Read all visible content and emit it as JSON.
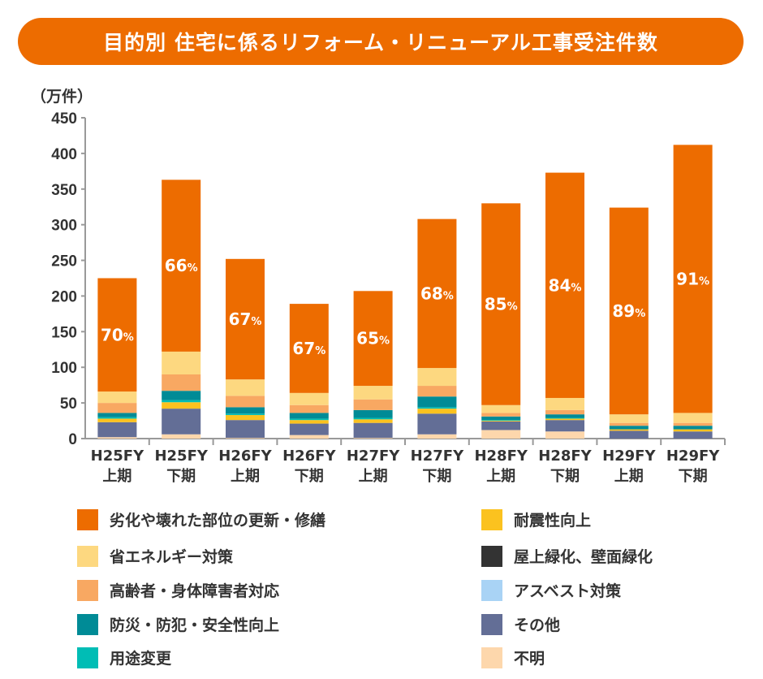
{
  "chart_data": {
    "type": "bar",
    "stacked": true,
    "title": "目的別 住宅に係るリフォーム・リニューアル工事受注件数",
    "ylabel": "（万件）",
    "ylim": [
      0,
      450
    ],
    "yticks": [
      "0",
      "50",
      "100",
      "150",
      "200",
      "250",
      "300",
      "350",
      "400",
      "450"
    ],
    "categories": [
      [
        "H25FY",
        "上期"
      ],
      [
        "H25FY",
        "下期"
      ],
      [
        "H26FY",
        "上期"
      ],
      [
        "H26FY",
        "下期"
      ],
      [
        "H27FY",
        "上期"
      ],
      [
        "H27FY",
        "下期"
      ],
      [
        "H28FY",
        "上期"
      ],
      [
        "H28FY",
        "下期"
      ],
      [
        "H29FY",
        "上期"
      ],
      [
        "H29FY",
        "下期"
      ]
    ],
    "series": [
      {
        "name": "不明",
        "color": "#FDD7AC",
        "values": [
          2,
          6,
          1,
          5,
          1,
          6,
          12,
          10,
          0,
          0
        ]
      },
      {
        "name": "その他",
        "color": "#636E96",
        "values": [
          21,
          36,
          25,
          16,
          21,
          29,
          12,
          16,
          11,
          10
        ]
      },
      {
        "name": "耐震性向上",
        "color": "#FBC21F",
        "values": [
          5,
          9,
          7,
          5,
          5,
          7,
          1,
          2,
          2,
          3
        ]
      },
      {
        "name": "用途変更",
        "color": "#00BDB5",
        "values": [
          2,
          3,
          2,
          2,
          2,
          2,
          1,
          1,
          0,
          0
        ]
      },
      {
        "name": "屋上緑化、壁面緑化",
        "color": "#333333",
        "values": [
          0,
          0,
          0,
          0,
          0,
          0,
          0,
          0,
          0,
          0
        ]
      },
      {
        "name": "アスベスト対策",
        "color": "#A9D3F5",
        "values": [
          0,
          0,
          0,
          0,
          0,
          0,
          0,
          0,
          0,
          0
        ]
      },
      {
        "name": "防災・防犯・安全性向上",
        "color": "#008B96",
        "values": [
          6,
          13,
          9,
          8,
          11,
          15,
          5,
          5,
          5,
          5
        ]
      },
      {
        "name": "高齢者・身体障害者対応",
        "color": "#F8A862",
        "values": [
          14,
          23,
          16,
          11,
          15,
          15,
          5,
          6,
          4,
          4
        ]
      },
      {
        "name": "省エネルギー対策",
        "color": "#FDD880",
        "values": [
          16,
          32,
          23,
          17,
          19,
          25,
          11,
          17,
          12,
          14
        ]
      },
      {
        "name": "劣化や壊れた部位の更新・修繕",
        "color": "#ED6C00",
        "values": [
          159,
          241,
          169,
          125,
          133,
          209,
          283,
          316,
          290,
          376
        ]
      }
    ],
    "data_labels": [
      "70%",
      "66%",
      "67%",
      "67%",
      "65%",
      "68%",
      "85%",
      "84%",
      "89%",
      "91%"
    ],
    "legend_left": [
      "劣化や壊れた部位の更新・修繕",
      "省エネルギー対策",
      "高齢者・身体障害者対応",
      "防災・防犯・安全性向上",
      "用途変更"
    ],
    "legend_right": [
      "耐震性向上",
      "屋上緑化、壁面緑化",
      "アスベスト対策",
      "その他",
      "不明"
    ],
    "legend_placement": "bottom"
  }
}
